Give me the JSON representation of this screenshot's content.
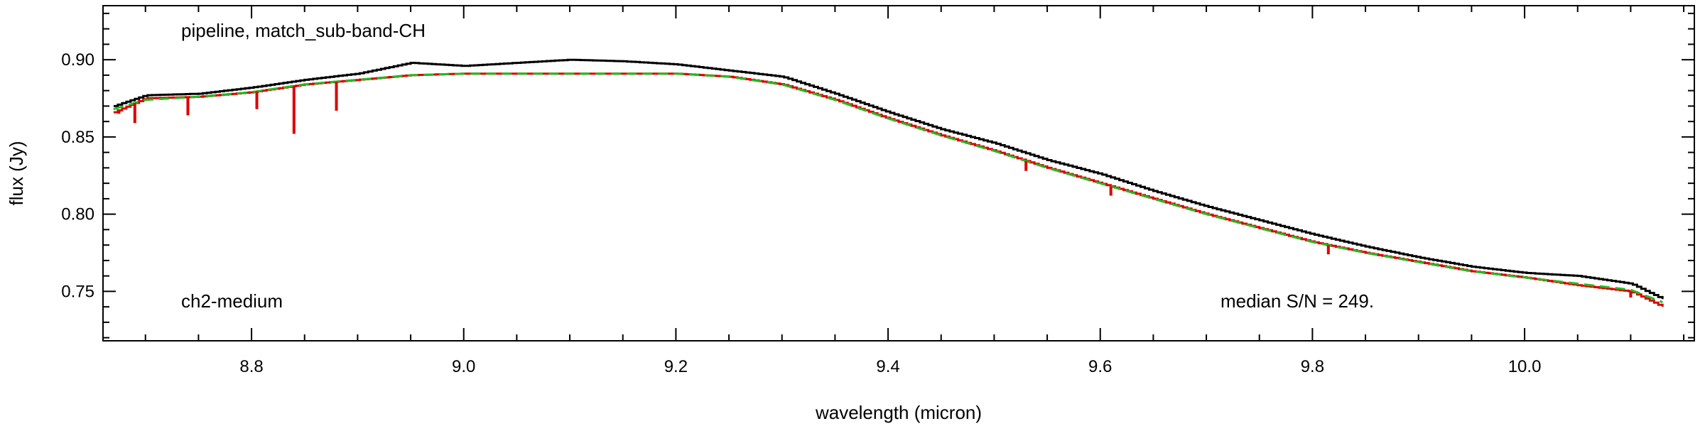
{
  "chart_data": {
    "type": "line",
    "xlabel": "wavelength (micron)",
    "ylabel": "flux (Jy)",
    "xlim": [
      8.66,
      10.16
    ],
    "ylim": [
      0.718,
      0.935
    ],
    "x_ticks": [
      8.8,
      9.0,
      9.2,
      9.4,
      9.6,
      9.8,
      10.0
    ],
    "x_tick_labels": [
      "8.8",
      "9.0",
      "9.2",
      "9.4",
      "9.6",
      "9.8",
      "10.0"
    ],
    "y_ticks": [
      0.75,
      0.8,
      0.85,
      0.9
    ],
    "y_tick_labels": [
      "0.75",
      "0.80",
      "0.85",
      "0.90"
    ],
    "grid": false,
    "annotations": {
      "top_left": "pipeline, match_sub-band-CH",
      "bottom_left": "ch2-medium",
      "bottom_right": "median S/N = 249."
    },
    "colors": {
      "observed": "#000000",
      "model": "#dd0000",
      "continuum": "#22bb22"
    },
    "series": [
      {
        "key": "observed",
        "style": "step",
        "x": [
          8.67,
          8.7,
          8.75,
          8.8,
          8.85,
          8.9,
          8.95,
          9.0,
          9.05,
          9.1,
          9.15,
          9.2,
          9.25,
          9.3,
          9.35,
          9.4,
          9.45,
          9.5,
          9.55,
          9.6,
          9.65,
          9.7,
          9.75,
          9.8,
          9.85,
          9.9,
          9.95,
          10.0,
          10.05,
          10.1,
          10.13
        ],
        "y": [
          0.87,
          0.877,
          0.878,
          0.882,
          0.887,
          0.891,
          0.898,
          0.896,
          0.898,
          0.9,
          0.899,
          0.897,
          0.893,
          0.889,
          0.878,
          0.866,
          0.855,
          0.846,
          0.835,
          0.826,
          0.815,
          0.805,
          0.796,
          0.787,
          0.779,
          0.772,
          0.766,
          0.762,
          0.76,
          0.755,
          0.745
        ]
      },
      {
        "key": "model",
        "style": "step",
        "x": [
          8.67,
          8.7,
          8.75,
          8.8,
          8.85,
          8.9,
          8.95,
          9.0,
          9.05,
          9.1,
          9.15,
          9.2,
          9.25,
          9.3,
          9.35,
          9.4,
          9.45,
          9.5,
          9.55,
          9.6,
          9.65,
          9.7,
          9.75,
          9.8,
          9.85,
          9.9,
          9.95,
          10.0,
          10.05,
          10.1,
          10.13
        ],
        "y": [
          0.866,
          0.875,
          0.876,
          0.879,
          0.884,
          0.887,
          0.89,
          0.891,
          0.891,
          0.891,
          0.891,
          0.891,
          0.889,
          0.884,
          0.874,
          0.862,
          0.851,
          0.841,
          0.83,
          0.82,
          0.81,
          0.8,
          0.791,
          0.782,
          0.775,
          0.769,
          0.763,
          0.759,
          0.754,
          0.75,
          0.74
        ]
      },
      {
        "key": "continuum",
        "style": "dashed",
        "x": [
          8.67,
          8.7,
          8.75,
          8.8,
          8.85,
          8.9,
          8.95,
          9.0,
          9.05,
          9.1,
          9.15,
          9.2,
          9.25,
          9.3,
          9.35,
          9.4,
          9.45,
          9.5,
          9.55,
          9.6,
          9.65,
          9.7,
          9.75,
          9.8,
          9.85,
          9.9,
          9.95,
          10.0,
          10.05,
          10.1,
          10.13
        ],
        "y": [
          0.868,
          0.874,
          0.876,
          0.879,
          0.884,
          0.887,
          0.89,
          0.891,
          0.891,
          0.891,
          0.891,
          0.891,
          0.889,
          0.884,
          0.874,
          0.862,
          0.851,
          0.841,
          0.83,
          0.82,
          0.81,
          0.8,
          0.791,
          0.782,
          0.775,
          0.769,
          0.763,
          0.759,
          0.755,
          0.751,
          0.743
        ]
      }
    ],
    "absorption_lines": [
      {
        "x": 8.675,
        "y": 0.865
      },
      {
        "x": 8.69,
        "y": 0.859
      },
      {
        "x": 8.74,
        "y": 0.864
      },
      {
        "x": 8.805,
        "y": 0.868
      },
      {
        "x": 8.84,
        "y": 0.852
      },
      {
        "x": 8.88,
        "y": 0.867
      },
      {
        "x": 9.53,
        "y": 0.828
      },
      {
        "x": 9.61,
        "y": 0.812
      },
      {
        "x": 9.815,
        "y": 0.774
      },
      {
        "x": 10.1,
        "y": 0.746
      }
    ]
  }
}
